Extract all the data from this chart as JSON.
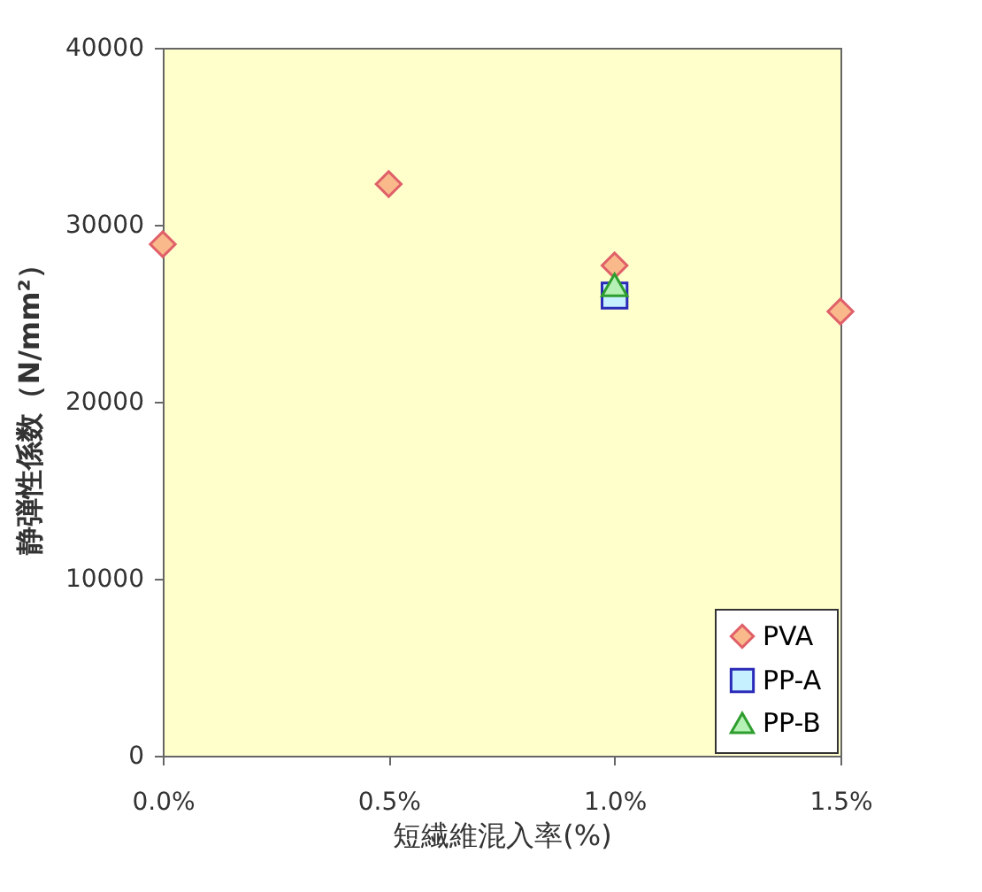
{
  "chart_data": {
    "type": "scatter",
    "xlabel": "短繊維混入率(%)",
    "ylabel": "静弾性係数（N/mm²）",
    "xlim": [
      0,
      1.5
    ],
    "xticks": [
      {
        "value": 0,
        "label": "0.0%"
      },
      {
        "value": 0.5,
        "label": "0.5%"
      },
      {
        "value": 1,
        "label": "1.0%"
      },
      {
        "value": 1.5,
        "label": "1.5%"
      }
    ],
    "ylim": [
      0,
      40000
    ],
    "yticks": [
      0,
      10000,
      20000,
      30000,
      40000
    ],
    "legend": "bottom right",
    "grid": false,
    "series": [
      {
        "name": "PVA",
        "color": "#f9b98a",
        "marker": "diamond",
        "x": [
          0,
          0.5,
          1,
          1.5
        ],
        "values": [
          28900,
          32300,
          27700,
          25100
        ]
      },
      {
        "name": "PP-A",
        "color": "#c6efff",
        "marker": "square",
        "x": [
          1
        ],
        "values": [
          26000
        ]
      },
      {
        "name": "PP-B",
        "color": "#b5f0b5",
        "marker": "triangle",
        "x": [
          1
        ],
        "values": [
          26600
        ]
      }
    ]
  }
}
